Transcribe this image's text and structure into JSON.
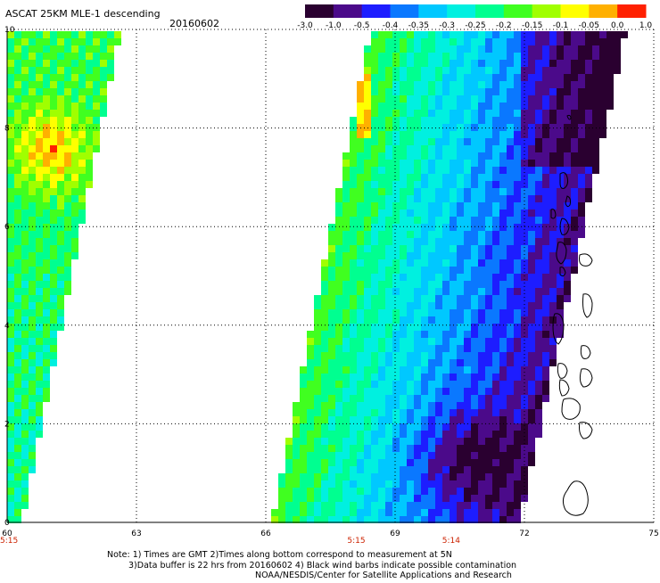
{
  "header": {
    "title": "ASCAT 25KM MLE-1 descending",
    "date": "20160602"
  },
  "colorbar": {
    "labels": [
      "-3.0",
      "-1.0",
      "-0.5",
      "-0.4",
      "-0.35",
      "-0.3",
      "-0.25",
      "-0.2",
      "-0.15",
      "-0.1",
      "-0.05",
      "0.0",
      "1.0"
    ],
    "colors": [
      "#2a0030",
      "#4b0a8a",
      "#1d1dff",
      "#0a78ff",
      "#00c8ff",
      "#00f0e0",
      "#00ff90",
      "#40ff20",
      "#a0ff00",
      "#ffff00",
      "#ffb000",
      "#ff2000"
    ]
  },
  "chart_data": {
    "type": "heatmap",
    "x_ticks": [
      "60",
      "63",
      "66",
      "69",
      "72",
      "75"
    ],
    "y_ticks": [
      "0",
      "2",
      "4",
      "6",
      "8",
      "10"
    ],
    "xlim": [
      60,
      75
    ],
    "ylim": [
      0,
      10
    ],
    "time_labels": [
      {
        "lon": 60,
        "text": "5:15"
      },
      {
        "lon": 68.1,
        "text": "5:15"
      },
      {
        "lon": 70.3,
        "text": "5:14"
      }
    ],
    "gridlines": true
  },
  "notes": {
    "line1": "Note: 1) Times are GMT 2)Times along bottom correspond to measurement at 5N",
    "line2": "3)Data buffer is 22 hrs from 20160602 4) Black wind barbs indicate possible contamination",
    "line3": "NOAA/NESDIS/Center for Satellite Applications and Research"
  },
  "style": {
    "time_label_color": "#cc2200",
    "grid_color": "#000000"
  }
}
